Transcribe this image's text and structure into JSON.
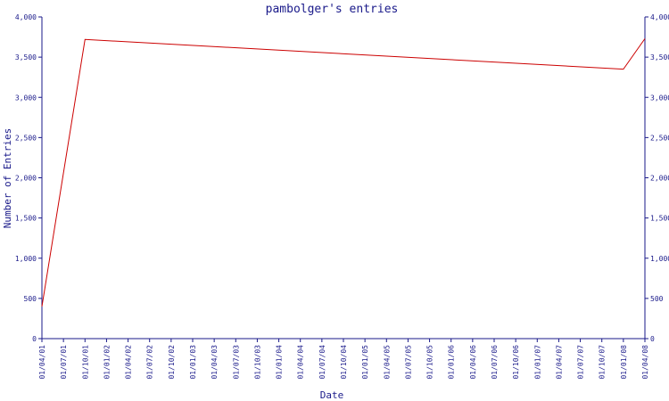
{
  "chart_data": {
    "type": "line",
    "title": "pambolger's entries",
    "xlabel": "Date",
    "ylabel": "Number of Entries",
    "ylim": [
      0,
      4000
    ],
    "y_ticks": [
      {
        "value": 0,
        "label": "0"
      },
      {
        "value": 500,
        "label": "500"
      },
      {
        "value": 1000,
        "label": "1,000"
      },
      {
        "value": 1500,
        "label": "1,500"
      },
      {
        "value": 2000,
        "label": "2,000"
      },
      {
        "value": 2500,
        "label": "2,500"
      },
      {
        "value": 3000,
        "label": "3,000"
      },
      {
        "value": 3500,
        "label": "3,500"
      },
      {
        "value": 4000,
        "label": "4,000"
      }
    ],
    "x_ticks": [
      "01/04/01",
      "01/07/01",
      "01/10/01",
      "01/01/02",
      "01/04/02",
      "01/07/02",
      "01/10/02",
      "01/01/03",
      "01/04/03",
      "01/07/03",
      "01/10/03",
      "01/01/04",
      "01/04/04",
      "01/07/04",
      "01/10/04",
      "01/01/05",
      "01/04/05",
      "01/07/05",
      "01/10/05",
      "01/01/06",
      "01/04/06",
      "01/07/06",
      "01/10/06",
      "01/01/07",
      "01/04/07",
      "01/07/07",
      "01/10/07",
      "01/01/08",
      "01/04/08"
    ],
    "grid": false,
    "colors": {
      "axis": "#1a1a8a",
      "line": "#cc0000"
    },
    "series": [
      {
        "points": [
          {
            "x": "01/04/01",
            "y": 400
          },
          {
            "x": "01/10/01",
            "y": 3720
          },
          {
            "x": "01/01/08",
            "y": 3350
          },
          {
            "x": "01/04/08",
            "y": 3730
          }
        ]
      }
    ]
  }
}
